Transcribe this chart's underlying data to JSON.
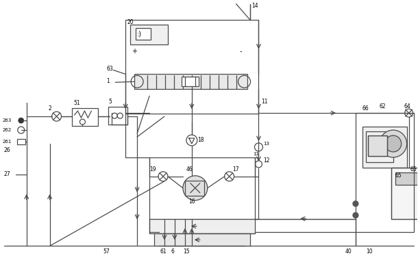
{
  "bg_color": "#ffffff",
  "line_color": "#4a4a4a",
  "figsize": [
    6.1,
    3.74
  ],
  "dpi": 100,
  "border_color": "#5a5a5a"
}
